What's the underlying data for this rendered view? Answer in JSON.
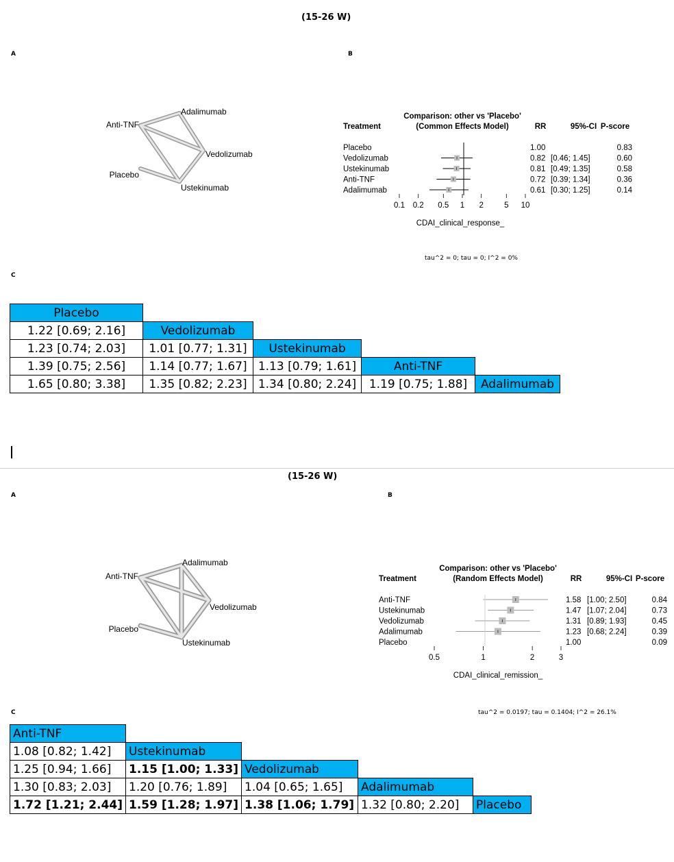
{
  "top": {
    "title": "(15-26 W)",
    "panel_a": "A",
    "panel_b": "B",
    "panel_c": "C",
    "network_labels": [
      "Adalimumab",
      "Anti-TNF",
      "Vedolizumab",
      "Placebo",
      "Ustekinumab"
    ],
    "forest": {
      "title1": "Comparison: other vs 'Placebo'",
      "title2": "(Common Effects Model)",
      "col_treatment": "Treatment",
      "col_rr": "RR",
      "col_ci": "95%-CI",
      "col_pscore": "P-score",
      "rows": [
        {
          "name": "Placebo",
          "rr": "1.00",
          "ci": "",
          "p": "0.83"
        },
        {
          "name": "Vedolizumab",
          "rr": "0.82",
          "ci": "[0.46; 1.45]",
          "p": "0.60"
        },
        {
          "name": "Ustekinumab",
          "rr": "0.81",
          "ci": "[0.49; 1.35]",
          "p": "0.58"
        },
        {
          "name": "Anti-TNF",
          "rr": "0.72",
          "ci": "[0.39; 1.34]",
          "p": "0.36"
        },
        {
          "name": "Adalimumab",
          "rr": "0.61",
          "ci": "[0.30; 1.25]",
          "p": "0.14"
        }
      ],
      "ticks": [
        "0.1",
        "0.2",
        "0.5",
        "1",
        "2",
        "5",
        "10"
      ],
      "xlabel": "CDAI_clinical_response_",
      "heterogeneity": "tau^2 = 0; tau = 0; I^2 = 0%"
    },
    "league": [
      [
        "Placebo"
      ],
      [
        "1.22 [0.69; 2.16]",
        "Vedolizumab"
      ],
      [
        "1.23 [0.74; 2.03]",
        "1.01 [0.77; 1.31]",
        "Ustekinumab"
      ],
      [
        "1.39 [0.75; 2.56]",
        "1.14 [0.77; 1.67]",
        "1.13 [0.79; 1.61]",
        "Anti-TNF"
      ],
      [
        "1.65 [0.80; 3.38]",
        "1.35 [0.82; 2.23]",
        "1.34 [0.80; 2.24]",
        "1.19 [0.75; 1.88]",
        "Adalimumab"
      ]
    ]
  },
  "bottom": {
    "title": "(15-26 W)",
    "panel_a": "A",
    "panel_b": "B",
    "panel_c": "C",
    "network_labels": [
      "Adalimumab",
      "Anti-TNF",
      "Vedolizumab",
      "Placebo",
      "Ustekinumab"
    ],
    "forest": {
      "title1": "Comparison: other vs 'Placebo'",
      "title2": "(Random Effects Model)",
      "col_treatment": "Treatment",
      "col_rr": "RR",
      "col_ci": "95%-CI",
      "col_pscore": "P-score",
      "rows": [
        {
          "name": "Anti-TNF",
          "rr": "1.58",
          "ci": "[1.00; 2.50]",
          "p": "0.84"
        },
        {
          "name": "Ustekinumab",
          "rr": "1.47",
          "ci": "[1.07; 2.04]",
          "p": "0.73"
        },
        {
          "name": "Vedolizumab",
          "rr": "1.31",
          "ci": "[0.89; 1.93]",
          "p": "0.45"
        },
        {
          "name": "Adalimumab",
          "rr": "1.23",
          "ci": "[0.68; 2.24]",
          "p": "0.39"
        },
        {
          "name": "Placebo",
          "rr": "1.00",
          "ci": "",
          "p": "0.09"
        }
      ],
      "ticks": [
        "0.5",
        "1",
        "2",
        "3"
      ],
      "xlabel": "CDAI_clinical_remission_",
      "heterogeneity": "tau^2 = 0.0197; tau = 0.1404; I^2 = 26.1%"
    },
    "league": [
      [
        "Anti-TNF"
      ],
      [
        "1.08 [0.82; 1.42]",
        "Ustekinumab"
      ],
      [
        "1.25 [0.94; 1.66]",
        "1.15 [1.00; 1.33]",
        "Vedolizumab"
      ],
      [
        "1.30 [0.83; 2.03]",
        "1.20 [0.76; 1.89]",
        "1.04 [0.65; 1.65]",
        "Adalimumab"
      ],
      [
        "1.72 [1.21; 2.44]",
        "1.59 [1.28; 1.97]",
        "1.38 [1.06; 1.79]",
        "1.32 [0.80; 2.20]",
        "Placebo"
      ]
    ]
  }
}
